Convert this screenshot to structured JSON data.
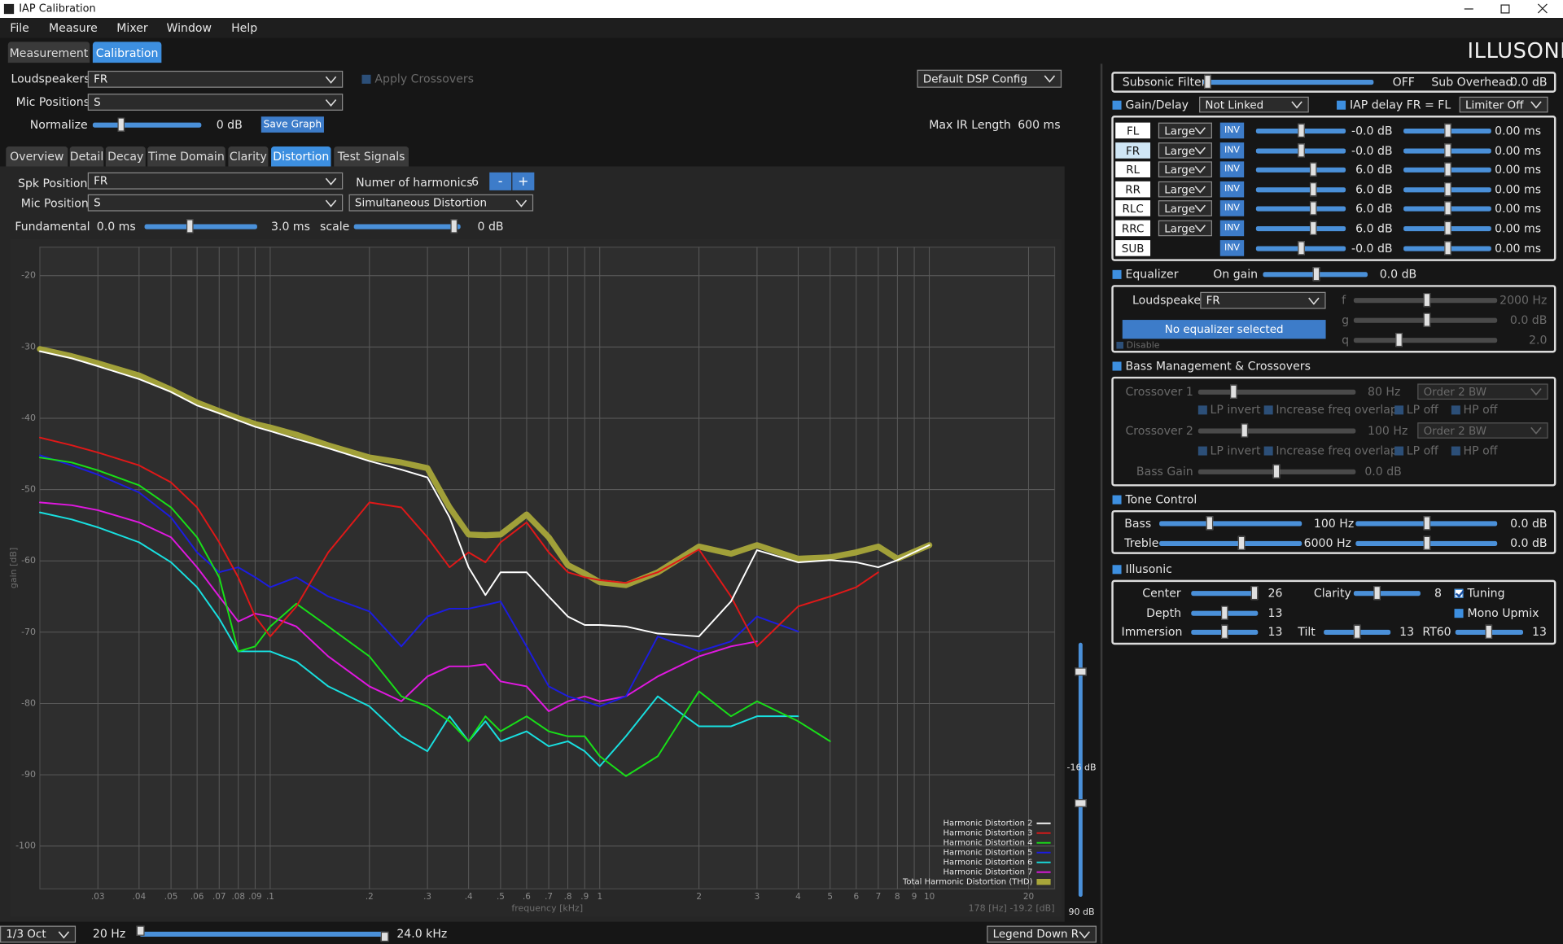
{
  "window": {
    "title": "IAP Calibration"
  },
  "menu": [
    "File",
    "Measure",
    "Mixer",
    "Window",
    "Help"
  ],
  "mode_tabs": [
    "Measurement",
    "Calibration"
  ],
  "brand": "ILLUSONIC",
  "measurement": {
    "loudspeakers_label": "Loudspeakers",
    "loudspeakers": "FR",
    "mic_positions_label": "Mic Positions",
    "mic_positions": "S",
    "normalize_label": "Normalize",
    "normalize": "0 dB",
    "save_graph": "Save Graph",
    "apply_crossovers": "Apply Crossovers",
    "dsp_config": "Default DSP Config",
    "max_ir_label": "Max IR Length",
    "max_ir": "600 ms"
  },
  "analysis_tabs": [
    "Overview",
    "Detail",
    "Decay",
    "Time Domain",
    "Clarity",
    "Distortion",
    "Test Signals"
  ],
  "distortion": {
    "spk_position_label": "Spk Position",
    "spk_position": "FR",
    "harmonics_label": "Numer of harmonics",
    "harmonics": "6",
    "minus": "-",
    "plus": "+",
    "mic_position_label": "Mic Position",
    "mic_position": "S",
    "mode": "Simultaneous Distortion",
    "fundamental_label": "Fundamental",
    "fundamental_from": "0.0 ms",
    "fundamental_to": "3.0 ms",
    "scale_label": "scale",
    "scale": "0 dB"
  },
  "level": {
    "top": "-16 dB",
    "bottom": "90 dB"
  },
  "footer": {
    "smoothing": "1/3 Oct",
    "low": "20 Hz",
    "high": "24.0 kHz",
    "legend": "Legend Down R"
  },
  "chart_data": {
    "type": "line",
    "x_label": "frequency [kHz]",
    "y_label": "gain [dB]",
    "annotation": "178 [Hz] -19.2 [dB]",
    "xscale": "log",
    "grid": true,
    "legend": "lower right",
    "xlim": [
      0.02,
      24
    ],
    "ylim": [
      -106,
      -16
    ],
    "xticks": [
      {
        "value": 0.03,
        "label": ".03"
      },
      {
        "value": 0.04,
        "label": ".04"
      },
      {
        "value": 0.05,
        "label": ".05"
      },
      {
        "value": 0.06,
        "label": ".06"
      },
      {
        "value": 0.07,
        "label": ".07"
      },
      {
        "value": 0.08,
        "label": ".08"
      },
      {
        "value": 0.09,
        "label": ".09"
      },
      {
        "value": 0.1,
        "label": ".1"
      },
      {
        "value": 0.2,
        "label": ".2"
      },
      {
        "value": 0.3,
        "label": ".3"
      },
      {
        "value": 0.4,
        "label": ".4"
      },
      {
        "value": 0.5,
        "label": ".5"
      },
      {
        "value": 0.6,
        "label": ".6"
      },
      {
        "value": 0.7,
        "label": ".7"
      },
      {
        "value": 0.8,
        "label": ".8"
      },
      {
        "value": 0.9,
        "label": ".9"
      },
      1,
      2,
      3,
      4,
      5,
      6,
      7,
      8,
      9,
      10,
      20
    ],
    "yticks": [
      -20,
      -30,
      -40,
      -50,
      -60,
      -70,
      -80,
      -90,
      -100
    ],
    "x": [
      0.02,
      0.025,
      0.03,
      0.04,
      0.05,
      0.06,
      0.07,
      0.08,
      0.09,
      0.1,
      0.12,
      0.15,
      0.2,
      0.25,
      0.3,
      0.35,
      0.4,
      0.45,
      0.5,
      0.6,
      0.7,
      0.8,
      0.9,
      1,
      1.2,
      1.5,
      2,
      2.5,
      3,
      4,
      5,
      6,
      7,
      8,
      10
    ],
    "series": [
      {
        "name": "Harmonic Distortion 2",
        "color": "#ffffff",
        "values": [
          -30.6,
          -31.6,
          -32.7,
          -34.5,
          -36.3,
          -38.2,
          -39.3,
          -40.3,
          -41.2,
          -41.8,
          -42.9,
          -44.2,
          -46,
          -47.2,
          -48.3,
          -53.9,
          -60.9,
          -64.8,
          -61.6,
          -61.6,
          -65,
          -67.8,
          -69,
          -69,
          -69.2,
          -70.2,
          -70.6,
          -65.7,
          -58.5,
          -60.2,
          -59.9,
          -60.2,
          -60.9,
          -59.9,
          -57.8
        ]
      },
      {
        "name": "Harmonic Distortion 3",
        "color": "#e01818",
        "values": [
          -42.7,
          -43.8,
          -44.8,
          -46.6,
          -49,
          -52.5,
          -57.4,
          -62.3,
          -67.8,
          -70.6,
          -66.4,
          -58.8,
          -51.8,
          -52.5,
          -56.7,
          -60.9,
          -58.8,
          -60.2,
          -57.4,
          -54.6,
          -58.8,
          -61.6,
          -62.3,
          -62.7,
          -63.1,
          -61.6,
          -58.4,
          -65,
          -72,
          -66.4,
          -65,
          -63.7,
          -61.6,
          null,
          null
        ]
      },
      {
        "name": "Harmonic Distortion 4",
        "color": "#18e018",
        "values": [
          -45.5,
          -46.2,
          -47.3,
          -49.4,
          -52.5,
          -56.7,
          -62.3,
          -72.7,
          -72,
          -69.2,
          -66,
          -69.2,
          -73.4,
          -79,
          -80.4,
          -82.5,
          -85.3,
          -81.8,
          -83.9,
          -81.8,
          -83.9,
          -84.6,
          -84.6,
          -87.4,
          -90.2,
          -87.4,
          -78.3,
          -81.8,
          -79.7,
          -82.5,
          -85.3,
          null,
          null,
          null,
          null
        ]
      },
      {
        "name": "Harmonic Distortion 5",
        "color": "#1c1ce0",
        "values": [
          -45.2,
          -46.6,
          -47.9,
          -50.4,
          -53.9,
          -58.8,
          -61.6,
          -60.9,
          -62.3,
          -63.7,
          -62.3,
          -65,
          -67.1,
          -72,
          -67.8,
          -66.7,
          -66.7,
          -66.2,
          -65.7,
          -72,
          -77.6,
          -79,
          -79.7,
          -80.4,
          -79,
          -70.6,
          -72.7,
          -71.3,
          -67.8,
          -69.9,
          null,
          null,
          null,
          null,
          null
        ]
      },
      {
        "name": "Harmonic Distortion 6",
        "color": "#18e0e0",
        "values": [
          -53.2,
          -54.2,
          -55.3,
          -57.4,
          -60.2,
          -63.7,
          -68.1,
          -72.7,
          -72.7,
          -72.7,
          -74.1,
          -77.6,
          -80.4,
          -84.6,
          -86.7,
          -81.8,
          -85.3,
          -82.5,
          -85.3,
          -83.9,
          -86,
          -85.3,
          -86.7,
          -88.8,
          -84.6,
          -79,
          -83.2,
          -83.2,
          -81.8,
          -81.8,
          null,
          null,
          null,
          null,
          null
        ]
      },
      {
        "name": "Harmonic Distortion 7",
        "color": "#e018e0",
        "values": [
          -51.8,
          -52.2,
          -52.9,
          -54.6,
          -56.7,
          -60.9,
          -65,
          -68.5,
          -67.4,
          -67.8,
          -69.2,
          -73.4,
          -77.6,
          -79.7,
          -76.2,
          -74.8,
          -74.8,
          -74.5,
          -76.9,
          -77.6,
          -81.1,
          -79.7,
          -79,
          -79.7,
          -79,
          -76.2,
          -73.4,
          -72,
          -71.3,
          null,
          null,
          null,
          null,
          null,
          null
        ]
      },
      {
        "name": "Total Harmonic Distortion (THD)",
        "color": "#a8a63a",
        "values": [
          -30.3,
          -31.3,
          -32.3,
          -34,
          -36,
          -37.8,
          -39,
          -40,
          -40.8,
          -41.3,
          -42.3,
          -43.8,
          -45.5,
          -46.2,
          -47,
          -52.5,
          -56.3,
          -56.4,
          -56.3,
          -53.5,
          -56.7,
          -60.6,
          -61.8,
          -63,
          -63.4,
          -61.6,
          -58,
          -59,
          -57.8,
          -59.7,
          -59.5,
          -58.8,
          -58,
          -59.7,
          -57.8
        ]
      }
    ]
  },
  "dsp": {
    "subsonic_label": "Subsonic Filter",
    "subsonic": "OFF",
    "sub_overhead_label": "Sub Overhead",
    "sub_overhead": "0.0 dB",
    "gain_delay": "Gain/Delay",
    "link": "Not Linked",
    "iap_delay": "IAP delay FR = FL",
    "limiter": "Limiter Off",
    "inv": "INV",
    "channels": [
      {
        "name": "FL",
        "size": "Large",
        "gain": "-0.0 dB",
        "delay": "0.00 ms"
      },
      {
        "name": "FR",
        "size": "Large",
        "gain": "-0.0 dB",
        "delay": "0.00 ms"
      },
      {
        "name": "RL",
        "size": "Large",
        "gain": "6.0 dB",
        "delay": "0.00 ms"
      },
      {
        "name": "RR",
        "size": "Large",
        "gain": "6.0 dB",
        "delay": "0.00 ms"
      },
      {
        "name": "RLC",
        "size": "Large",
        "gain": "6.0 dB",
        "delay": "0.00 ms"
      },
      {
        "name": "RRC",
        "size": "Large",
        "gain": "6.0 dB",
        "delay": "0.00 ms"
      },
      {
        "name": "SUB",
        "gain": "-0.0 dB",
        "delay": "0.00 ms"
      }
    ],
    "equalizer": {
      "label": "Equalizer",
      "on_gain_label": "On gain",
      "on_gain": "0.0 dB",
      "loudspeaker_label": "Loudspeaker",
      "loudspeaker": "FR",
      "status": "No equalizer selected",
      "disable": "Disable",
      "f_label": "f",
      "f": "2000 Hz",
      "g_label": "g",
      "g": "0.0 dB",
      "q_label": "q",
      "q": "2.0"
    },
    "bass": {
      "label": "Bass Management & Crossovers",
      "crossover1_label": "Crossover 1",
      "crossover1": "80 Hz",
      "crossover1_order": "Order 2 BW",
      "crossover2_label": "Crossover 2",
      "crossover2": "100 Hz",
      "crossover2_order": "Order 2 BW",
      "options": [
        "LP invert",
        "Increase freq overlap",
        "LP off",
        "HP off"
      ],
      "bass_gain_label": "Bass Gain",
      "bass_gain": "0.0 dB"
    },
    "tone": {
      "label": "Tone Control",
      "bass_label": "Bass",
      "bass_freq": "100 Hz",
      "bass_gain": "0.0 dB",
      "treble_label": "Treble",
      "treble_freq": "6000 Hz",
      "treble_gain": "0.0 dB"
    },
    "illusonic": {
      "label": "Illusonic",
      "center_label": "Center",
      "center": "26",
      "clarity_label": "Clarity",
      "clarity": "8",
      "tuning": "Tuning",
      "depth_label": "Depth",
      "depth": "13",
      "mono_upmix": "Mono Upmix",
      "immersion_label": "Immersion",
      "immersion": "13",
      "tilt_label": "Tilt",
      "tilt": "13",
      "rt60_label": "RT60",
      "rt60": "13"
    }
  }
}
